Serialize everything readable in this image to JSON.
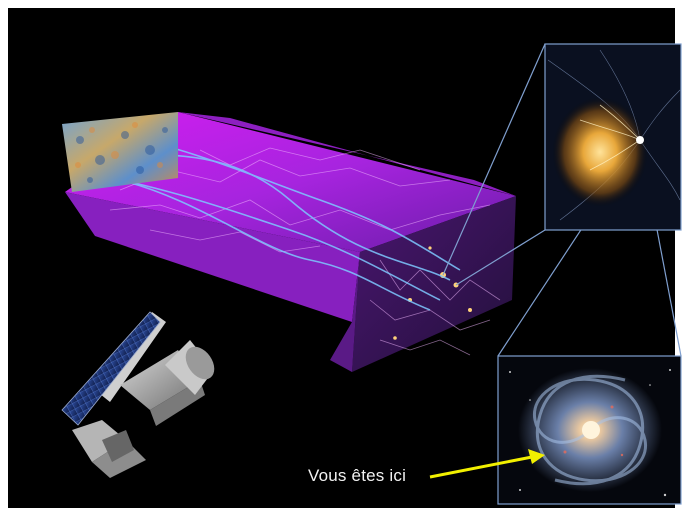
{
  "scene": {
    "caption": "Vous êtes ici",
    "background_color": "#000000",
    "frame_color": "#ffffff",
    "arrow_color": "#f2f000",
    "cube_color": "#b832e6",
    "connector_color": "#7f9fcf"
  }
}
